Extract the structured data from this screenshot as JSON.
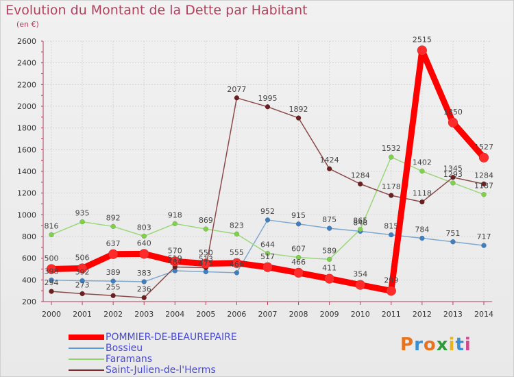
{
  "header": {
    "title": "Evolution du Montant de la Dette par Habitant",
    "subtitle": "(en €)"
  },
  "brand": {
    "text": "Proxiti",
    "colors": [
      "#e8731c",
      "#3a8fd0",
      "#e8731c",
      "#2f9a3a",
      "#e8b21c",
      "#3a8fd0",
      "#d04a8f"
    ]
  },
  "chart_data": {
    "type": "line",
    "title": "Evolution du Montant de la Dette par Habitant",
    "subtitle": "(en €)",
    "xlabel": "",
    "ylabel": "",
    "ylim": [
      200,
      2600
    ],
    "yticks": [
      200,
      400,
      600,
      800,
      1000,
      1200,
      1400,
      1600,
      1800,
      2000,
      2200,
      2400,
      2600
    ],
    "categories": [
      "2000",
      "2001",
      "2002",
      "2003",
      "2004",
      "2005",
      "2006",
      "2007",
      "2008",
      "2009",
      "2010",
      "2011",
      "2012",
      "2013",
      "2014"
    ],
    "grid": true,
    "legend_position": "bottom-left",
    "series": [
      {
        "name": "POMMIER-DE-BEAUREPAIRE",
        "color": "#ff0000",
        "line_color": "#ff0000",
        "marker_color": "#ff2a2a",
        "width": 9,
        "marker_r": 7,
        "values": [
          500,
          506,
          637,
          640,
          570,
          550,
          555,
          517,
          466,
          411,
          354,
          299,
          2515,
          1850,
          1527
        ],
        "labels": [
          "500",
          "506",
          "637",
          "640",
          "570",
          "550",
          "555",
          "517",
          "466",
          "411",
          "354",
          "299",
          "2515",
          "1850",
          "1527"
        ]
      },
      {
        "name": "Bossieu",
        "color": "#5b9bd5",
        "line_color": "#7fa8cf",
        "marker_color": "#3f7fbf",
        "width": 1.5,
        "marker_r": 3.5,
        "values": [
          398,
          392,
          389,
          383,
          484,
          475,
          466,
          952,
          915,
          875,
          848,
          815,
          784,
          751,
          717
        ],
        "labels": [
          "398",
          "392",
          "389",
          "383",
          "484",
          "475",
          "466",
          "952",
          "915",
          "875",
          "848",
          "815",
          "784",
          "751",
          "717"
        ]
      },
      {
        "name": "Faramans",
        "color": "#8fd46a",
        "line_color": "#9ad77a",
        "marker_color": "#7fd04a",
        "width": 1.5,
        "marker_r": 3.5,
        "values": [
          816,
          935,
          892,
          803,
          918,
          869,
          823,
          644,
          607,
          589,
          865,
          1532,
          1402,
          1293,
          1187
        ],
        "labels": [
          "816",
          "935",
          "892",
          "803",
          "918",
          "869",
          "823",
          "644",
          "607",
          "589",
          "865",
          "1532",
          "1402",
          "1293",
          "1187"
        ]
      },
      {
        "name": "Saint-Julien-de-l'Herms",
        "color": "#7a2a2a",
        "line_color": "#8b4a4a",
        "marker_color": "#6b1f1f",
        "width": 1.5,
        "marker_r": 3.5,
        "values": [
          294,
          273,
          255,
          236,
          519,
          513,
          2077,
          1995,
          1892,
          1424,
          1284,
          1178,
          1118,
          1345,
          1284
        ],
        "labels": [
          "294",
          "273",
          "255",
          "236",
          "519",
          "513",
          "2077",
          "1995",
          "1892",
          "1424",
          "1284",
          "1178",
          "1118",
          "1345",
          "1284"
        ]
      }
    ]
  }
}
